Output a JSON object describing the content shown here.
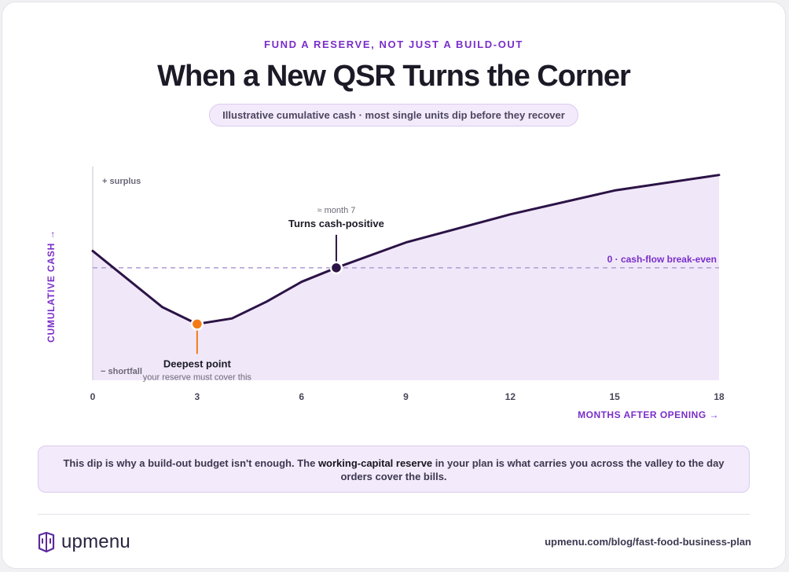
{
  "header": {
    "eyebrow": "FUND A RESERVE, NOT JUST A BUILD-OUT",
    "title": "When a New QSR Turns the Corner",
    "subtitle": "Illustrative cumulative cash · most single units dip before they recover"
  },
  "chart_data": {
    "type": "area",
    "x": [
      0,
      2,
      3,
      4,
      5,
      6,
      7,
      9,
      12,
      15,
      18
    ],
    "y": [
      1.2,
      -2.8,
      -4.0,
      -3.6,
      -2.4,
      -1.0,
      0,
      1.8,
      3.8,
      5.5,
      6.6
    ],
    "xticks": [
      0,
      3,
      6,
      9,
      12,
      15,
      18
    ],
    "xlim": [
      0,
      18
    ],
    "ylim": [
      -8,
      7.2
    ],
    "xlabel": "MONTHS AFTER OPENING →",
    "ylabel": "CUMULATIVE CASH →",
    "y_top_label": "+ surplus",
    "y_bottom_label": "− shortfall",
    "break_even": {
      "y": 0,
      "label": "0 · cash-flow break-even"
    },
    "annotations": {
      "deepest": {
        "x": 3,
        "y": -4.0,
        "title": "Deepest point",
        "subtitle": "your reserve must cover this"
      },
      "crossover": {
        "x": 7,
        "y": 0,
        "month_label": "≈ month 7",
        "title": "Turns cash-positive"
      }
    },
    "grid": false,
    "colors": {
      "line": "#2c1346",
      "fill": "#f0e8f9",
      "reference": "#b3a4d6",
      "accent": "#7a2ec9",
      "deepest_marker": "#f47a14",
      "crossover_marker": "#2c1346",
      "muted": "#6c6878"
    }
  },
  "note": {
    "before": "This dip is why a build-out budget isn't enough. The ",
    "emphasis": "working-capital reserve",
    "after": " in your plan is what carries you across the valley to the day orders cover the bills."
  },
  "footer": {
    "brand": "upmenu",
    "brand_icon": "upmenu-logo-icon",
    "source": "upmenu.com/blog/fast-food-business-plan"
  }
}
